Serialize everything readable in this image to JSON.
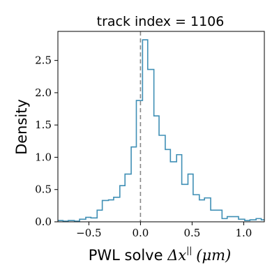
{
  "chart_data": {
    "type": "histogram-step",
    "title": "track index = 1106",
    "xlabel": {
      "prefix": "PWL solve ",
      "math": "Δx",
      "superscript": "||",
      "unit": "(μm)"
    },
    "ylabel": "Density",
    "xlim": [
      -0.8,
      1.2
    ],
    "ylim": [
      0,
      2.95
    ],
    "xticks": [
      -0.5,
      0.0,
      0.5,
      1.0
    ],
    "xtick_labels": [
      "−0.5",
      "0.0",
      "0.5",
      "1.0"
    ],
    "yticks": [
      0.0,
      0.5,
      1.0,
      1.5,
      2.0,
      2.5
    ],
    "ytick_labels": [
      "0.0",
      "0.5",
      "1.0",
      "1.5",
      "2.0",
      "2.5"
    ],
    "bins": [
      [
        -0.8,
        -0.75,
        0.02
      ],
      [
        -0.75,
        -0.7,
        0.01
      ],
      [
        -0.7,
        -0.64,
        0.02
      ],
      [
        -0.64,
        -0.59,
        0.01
      ],
      [
        -0.59,
        -0.53,
        0.04
      ],
      [
        -0.53,
        -0.48,
        0.07
      ],
      [
        -0.48,
        -0.42,
        0.06
      ],
      [
        -0.42,
        -0.37,
        0.18
      ],
      [
        -0.37,
        -0.31,
        0.33
      ],
      [
        -0.31,
        -0.26,
        0.34
      ],
      [
        -0.26,
        -0.2,
        0.38
      ],
      [
        -0.2,
        -0.15,
        0.56
      ],
      [
        -0.15,
        -0.09,
        0.74
      ],
      [
        -0.09,
        -0.04,
        1.16
      ],
      [
        -0.04,
        0.02,
        1.88
      ],
      [
        0.02,
        0.07,
        2.82
      ],
      [
        0.07,
        0.13,
        2.36
      ],
      [
        0.13,
        0.18,
        1.64
      ],
      [
        0.18,
        0.24,
        1.34
      ],
      [
        0.24,
        0.29,
        1.12
      ],
      [
        0.29,
        0.35,
        0.93
      ],
      [
        0.35,
        0.4,
        1.04
      ],
      [
        0.4,
        0.46,
        0.58
      ],
      [
        0.46,
        0.51,
        0.74
      ],
      [
        0.51,
        0.57,
        0.42
      ],
      [
        0.57,
        0.62,
        0.34
      ],
      [
        0.62,
        0.68,
        0.37
      ],
      [
        0.68,
        0.73,
        0.18
      ],
      [
        0.73,
        0.79,
        0.18
      ],
      [
        0.79,
        0.84,
        0.05
      ],
      [
        0.84,
        0.9,
        0.08
      ],
      [
        0.9,
        0.95,
        0.08
      ],
      [
        0.95,
        1.01,
        0.04
      ],
      [
        1.01,
        1.06,
        0.02
      ],
      [
        1.06,
        1.12,
        0.03
      ],
      [
        1.12,
        1.17,
        0.05
      ],
      [
        1.17,
        1.2,
        0.03
      ]
    ],
    "vline": {
      "x": 0.0,
      "style": "dashed"
    },
    "grid": false,
    "colors": {
      "series": "#3f8fb5",
      "vline": "#888888"
    }
  }
}
